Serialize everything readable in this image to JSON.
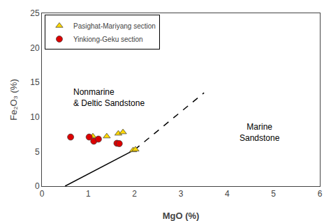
{
  "chart_data": {
    "type": "scatter",
    "xlabel": "MgO (%)",
    "ylabel": "Fe₂O₃ (%)",
    "xlim": [
      0,
      6
    ],
    "ylim": [
      0,
      25
    ],
    "xticks": [
      0,
      1,
      2,
      3,
      4,
      5,
      6
    ],
    "yticks": [
      0,
      5,
      10,
      15,
      20,
      25
    ],
    "grid": false,
    "legend": "upper left",
    "series": [
      {
        "type": "line",
        "color": "#000000",
        "line_style": "solid",
        "x": [
          0.5,
          2.0
        ],
        "values": [
          0.0,
          5.25
        ]
      },
      {
        "type": "line",
        "color": "#000000",
        "line_style": "dashed",
        "x": [
          2.0,
          3.5
        ],
        "values": [
          5.25,
          13.5
        ]
      },
      {
        "type": "scatter",
        "name": "Pasighat-Mariyang section",
        "color": "#FFD700",
        "marker": "triangle",
        "x": [
          1.1,
          1.4,
          1.65,
          1.75,
          1.97,
          2.02
        ],
        "values": [
          7.2,
          7.2,
          7.6,
          7.8,
          5.2,
          5.3
        ]
      },
      {
        "type": "scatter",
        "name": "Yinkiong-Geku section",
        "color": "#DD0000",
        "marker": "circle",
        "x": [
          0.62,
          1.02,
          1.12,
          1.22,
          1.62,
          1.67
        ],
        "values": [
          7.1,
          7.1,
          6.5,
          6.8,
          6.2,
          6.15
        ]
      }
    ],
    "annotations": [
      {
        "text": "Nonmarine\n& Deltic Sandstone",
        "x": 0.65,
        "y": 14.5
      },
      {
        "text": "Marine\nSandstone",
        "x": 4.7,
        "y": 9.5
      }
    ]
  }
}
